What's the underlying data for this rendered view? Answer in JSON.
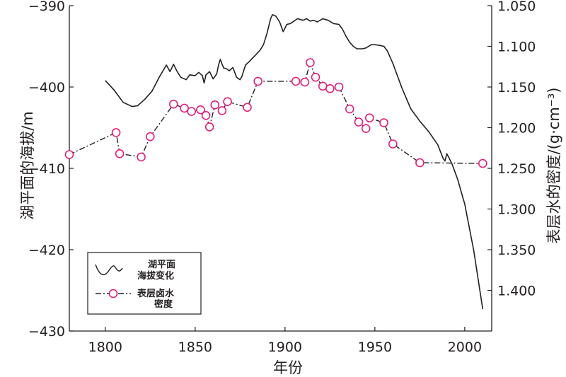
{
  "chart_data": {
    "type": "line",
    "xlabel": "年份",
    "ylabel_left": "湖平面的海拔/m",
    "ylabel_right": "表层水的密度/(g·cm⁻³)",
    "xlim": [
      1780,
      2015
    ],
    "ylim_left": [
      -430,
      -390
    ],
    "ylim_right": [
      1.05,
      1.45
    ],
    "x_ticks": [
      "1800",
      "1850",
      "1900",
      "1950",
      "2000"
    ],
    "y_left_ticks": [
      "-390",
      "-400",
      "-410",
      "-420",
      "-430"
    ],
    "y_right_ticks": [
      "1.050",
      "1.100",
      "1.150",
      "1.200",
      "1.250",
      "1.300",
      "1.350",
      "1.400"
    ],
    "grid": false,
    "legend_position": "bottom-left",
    "series": [
      {
        "name": "湖平面海拔变化",
        "axis": "left",
        "style": "solid",
        "color": "#231f20",
        "x": [
          1800,
          1805,
          1810,
          1815,
          1818,
          1822,
          1826,
          1830,
          1834,
          1836,
          1838,
          1840,
          1842,
          1845,
          1847,
          1850,
          1852,
          1854,
          1855,
          1856,
          1858,
          1860,
          1862,
          1863,
          1864,
          1865,
          1866,
          1867,
          1869,
          1871,
          1873,
          1875,
          1876,
          1878,
          1880,
          1883,
          1886,
          1888,
          1890,
          1892,
          1893,
          1895,
          1897,
          1899,
          1901,
          1903,
          1905,
          1907,
          1910,
          1912,
          1914,
          1916,
          1918,
          1921,
          1924,
          1927,
          1930,
          1932,
          1934,
          1936,
          1938,
          1940,
          1943,
          1945,
          1948,
          1950,
          1953,
          1955,
          1957,
          1960,
          1965,
          1970,
          1975,
          1980,
          1985,
          1988,
          1989,
          1990,
          1991,
          1993,
          1996,
          2000,
          2005,
          2010
        ],
        "values": [
          -399.2,
          -400.4,
          -401.9,
          -402.4,
          -402.3,
          -401.5,
          -400.5,
          -398.8,
          -397.3,
          -398.1,
          -397.2,
          -398.1,
          -398.8,
          -399.1,
          -398.5,
          -398.6,
          -398.2,
          -398.6,
          -399.5,
          -398.5,
          -398.1,
          -399.0,
          -398.4,
          -397.3,
          -396.6,
          -397.2,
          -397.7,
          -397.7,
          -398.0,
          -397.6,
          -398.8,
          -399.1,
          -398.7,
          -397.3,
          -396.9,
          -396.2,
          -395.5,
          -394.8,
          -393.4,
          -391.6,
          -391.1,
          -391.3,
          -392.0,
          -393.2,
          -392.3,
          -392.2,
          -391.9,
          -391.6,
          -391.8,
          -391.6,
          -391.9,
          -391.8,
          -392.0,
          -391.6,
          -391.8,
          -392.2,
          -392.3,
          -392.9,
          -393.8,
          -394.5,
          -395.0,
          -395.3,
          -395.3,
          -395.2,
          -394.8,
          -394.8,
          -394.9,
          -395.0,
          -395.6,
          -397.1,
          -400.1,
          -402.7,
          -404.2,
          -405.5,
          -407.1,
          -408.8,
          -409.1,
          -408.2,
          -408.6,
          -409.5,
          -411.3,
          -414.4,
          -420.1,
          -427.3
        ]
      },
      {
        "name": "表层卤水密度",
        "axis": "right",
        "style": "dash-dot",
        "marker": "circle",
        "color": "#e0207a",
        "x": [
          1780,
          1806,
          1808,
          1820,
          1825,
          1838,
          1844,
          1848,
          1853,
          1856,
          1858,
          1861,
          1865,
          1868,
          1879,
          1885,
          1906,
          1911,
          1914,
          1917,
          1921,
          1925,
          1930,
          1936,
          1941,
          1945,
          1947,
          1955,
          1960,
          1975,
          2010
        ],
        "values": [
          1.233,
          1.206,
          1.232,
          1.236,
          1.211,
          1.171,
          1.176,
          1.18,
          1.178,
          1.185,
          1.199,
          1.172,
          1.179,
          1.168,
          1.175,
          1.143,
          1.143,
          1.144,
          1.12,
          1.138,
          1.149,
          1.152,
          1.15,
          1.177,
          1.193,
          1.201,
          1.188,
          1.194,
          1.22,
          1.243,
          1.244
        ]
      }
    ],
    "legend": [
      {
        "label_line1": "湖平面",
        "label_line2": "海拔变化"
      },
      {
        "label_line1": "表层卤水",
        "label_line2": "密度"
      }
    ]
  }
}
